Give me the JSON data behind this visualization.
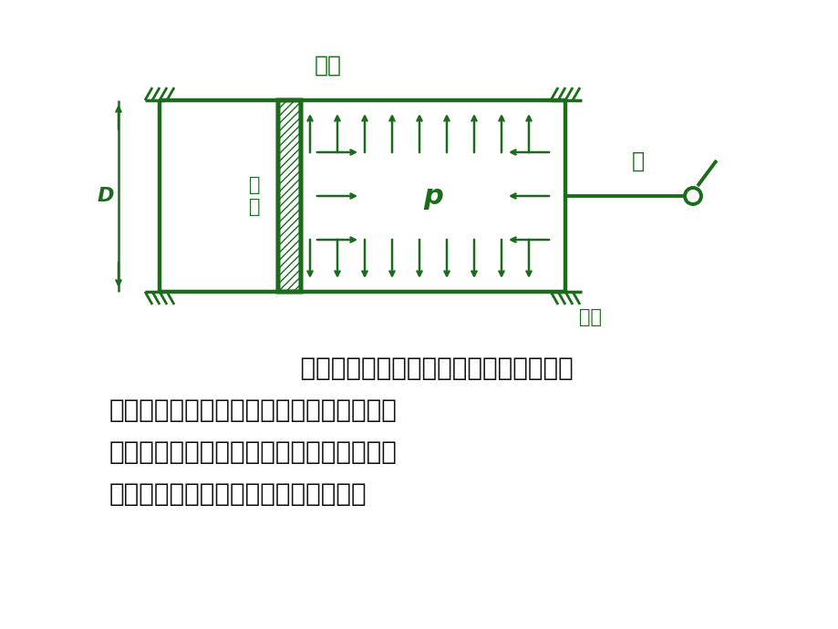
{
  "bg_color": "#ffffff",
  "draw_color": "#1a6b1a",
  "body_text_color": "#111111",
  "label_qigang": "气缸",
  "label_huosai_1": "活",
  "label_huosai_2": "塞",
  "label_p": "p",
  "label_gan": "杆",
  "label_luoshuan": "螺栓",
  "label_D": "D",
  "para_line1": "    由汽缸、活塞、连杆所组成的机构中，不",
  "para_line2": "仅连接汽缸缸体和汽缸盖的螺栓承受轴向拉",
  "para_line3": "力，带动活塞运动的连杆由于两端都是馓链",
  "para_line4": "约束，因而也是承受轴向载荷的杆件。",
  "figsize": [
    9.2,
    6.9
  ],
  "dpi": 100
}
